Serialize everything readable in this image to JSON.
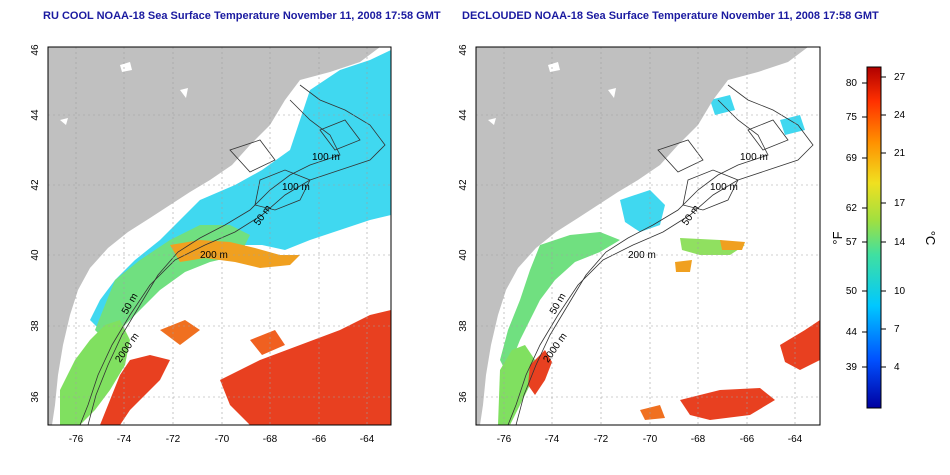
{
  "panels": [
    {
      "title": "RU COOL NOAA-18 Sea Surface Temperature November 11, 2008 17:58 GMT",
      "x_ticks": [
        "-76",
        "-74",
        "-72",
        "-70",
        "-68",
        "-66",
        "-64"
      ],
      "y_ticks": [
        "36",
        "38",
        "40",
        "42",
        "44",
        "46"
      ],
      "contour_labels": [
        "100 m",
        "100 m",
        "50 m",
        "200 m",
        "50 m",
        "2000 m"
      ]
    },
    {
      "title": "DECLOUDED NOAA-18 Sea Surface Temperature November 11, 2008 17:58 GMT",
      "x_ticks": [
        "-76",
        "-74",
        "-72",
        "-70",
        "-68",
        "-66",
        "-64"
      ],
      "y_ticks": [
        "36",
        "38",
        "40",
        "42",
        "44",
        "46"
      ],
      "contour_labels": [
        "100 m",
        "100 m",
        "50 m",
        "200 m",
        "50 m",
        "2000 m"
      ]
    }
  ],
  "colorbar": {
    "fahrenheit_ticks": [
      "80",
      "75",
      "69",
      "62",
      "57",
      "50",
      "44",
      "39"
    ],
    "celsius_ticks": [
      "27",
      "24",
      "21",
      "17",
      "14",
      "10",
      "7",
      "4"
    ],
    "fahrenheit_label": "°F",
    "celsius_label": "°C",
    "colors": [
      "#0000a0",
      "#0050ff",
      "#00c8ff",
      "#40e0a0",
      "#a0e040",
      "#f0e020",
      "#ff9000",
      "#ff3000",
      "#b00000"
    ]
  },
  "colors": {
    "land": "#c0c0c0",
    "title": "#1a1aa0",
    "cold_water": "#40d8f0",
    "warm_water": "#e84020"
  }
}
